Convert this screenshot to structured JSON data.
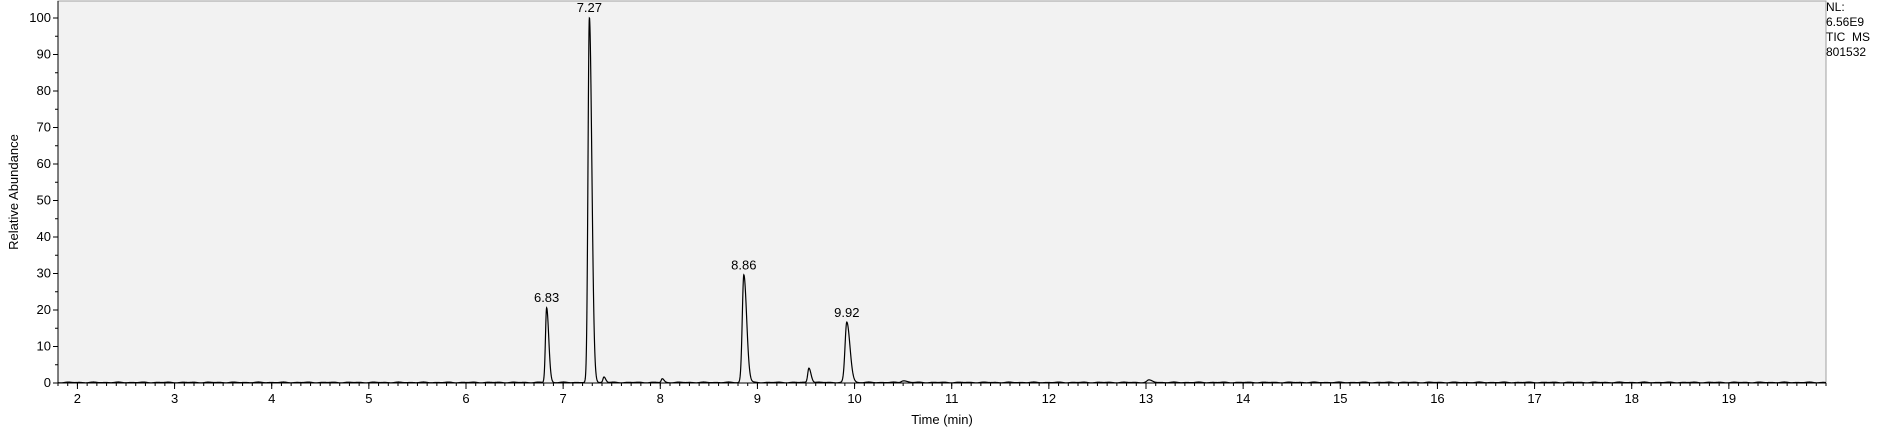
{
  "chart_data": {
    "type": "line",
    "xlabel": "Time (min)",
    "ylabel": "Relative Abundance",
    "xlim": [
      1.8,
      20.0
    ],
    "ylim": [
      0,
      100
    ],
    "x_ticks": [
      2,
      3,
      4,
      5,
      6,
      7,
      8,
      9,
      10,
      11,
      12,
      13,
      14,
      15,
      16,
      17,
      18,
      19
    ],
    "y_ticks": [
      0,
      10,
      20,
      30,
      40,
      50,
      60,
      70,
      80,
      90,
      100
    ],
    "peaks": [
      {
        "rt": 6.83,
        "label": "6.83",
        "height": 20.5,
        "width": 0.012
      },
      {
        "rt": 7.27,
        "label": "7.27",
        "height": 100,
        "width": 0.014
      },
      {
        "rt": 8.86,
        "label": "8.86",
        "height": 29.5,
        "width": 0.016
      },
      {
        "rt": 9.92,
        "label": "9.92",
        "height": 16.5,
        "width": 0.018
      }
    ],
    "minor_peaks": [
      {
        "rt": 7.42,
        "height": 1.5,
        "width": 0.01
      },
      {
        "rt": 8.02,
        "height": 1.0,
        "width": 0.01
      },
      {
        "rt": 9.53,
        "height": 4.0,
        "width": 0.012
      },
      {
        "rt": 10.5,
        "height": 0.5,
        "width": 0.02
      },
      {
        "rt": 13.03,
        "height": 0.6,
        "width": 0.02
      }
    ],
    "background_color": "#f2f2f2",
    "line_color": "#000000",
    "grid": false
  },
  "annotations": {
    "nl_label": "NL:",
    "nl_value": "6.56E9",
    "trace": "TIC  MS",
    "sample": "801532"
  }
}
